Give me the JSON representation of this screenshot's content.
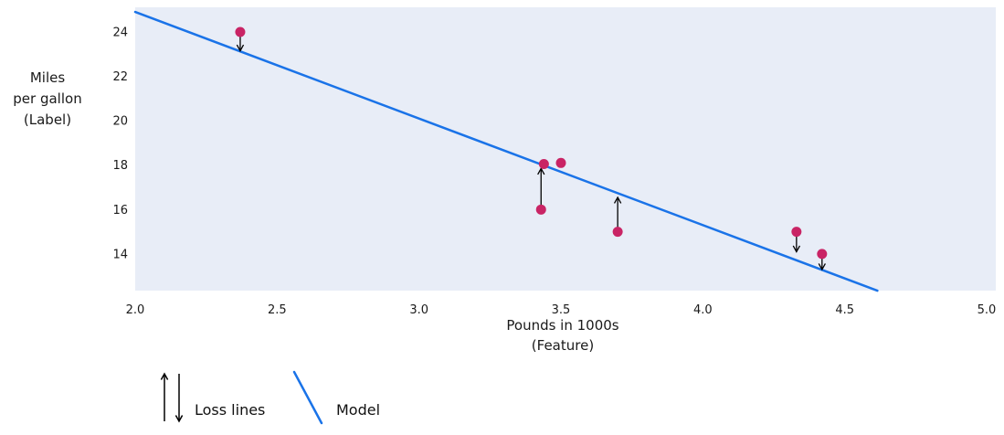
{
  "chart_data": {
    "type": "scatter",
    "xlabel": "Pounds in 1000s (Feature)",
    "xlabel_lines": [
      "Pounds in 1000s",
      "(Feature)"
    ],
    "ylabel": "Miles per gallon (Label)",
    "ylabel_lines": [
      "Miles",
      "per gallon",
      "(Label)"
    ],
    "xlim": [
      2.0,
      5.0
    ],
    "ylim": [
      12.35,
      25.11
    ],
    "xticks": [
      2.0,
      2.5,
      3.0,
      3.5,
      4.0,
      4.5,
      5.0
    ],
    "xtick_labels": [
      "2.0",
      "2.5",
      "3.0",
      "3.5",
      "4.0",
      "4.5",
      "5.0"
    ],
    "yticks": [
      14,
      16,
      18,
      20,
      22,
      24
    ],
    "ytick_labels": [
      "14",
      "16",
      "18",
      "20",
      "22",
      "24"
    ],
    "grid": false,
    "points": [
      {
        "x": 2.37,
        "y": 24.0
      },
      {
        "x": 3.43,
        "y": 16.0
      },
      {
        "x": 3.44,
        "y": 18.05
      },
      {
        "x": 3.5,
        "y": 18.1
      },
      {
        "x": 3.7,
        "y": 15.0
      },
      {
        "x": 4.33,
        "y": 15.0
      },
      {
        "x": 4.42,
        "y": 14.0
      }
    ],
    "model_line": {
      "slope": -4.8,
      "intercept": 34.5,
      "x_start": 2.0,
      "x_end": 4.615
    },
    "loss_arrows": [
      {
        "x": 2.37,
        "y_from": 23.8,
        "y_to": 23.15,
        "direction": "down"
      },
      {
        "x": 3.43,
        "y_from": 16.2,
        "y_to": 17.85,
        "direction": "up"
      },
      {
        "x": 3.7,
        "y_from": 15.2,
        "y_to": 16.55,
        "direction": "up"
      },
      {
        "x": 4.33,
        "y_from": 14.8,
        "y_to": 14.1,
        "direction": "down"
      },
      {
        "x": 4.42,
        "y_from": 13.8,
        "y_to": 13.3,
        "direction": "down"
      }
    ],
    "legend": {
      "position": "bottom-left",
      "items": [
        {
          "symbol": "arrow-pair",
          "label": "Loss lines"
        },
        {
          "symbol": "line",
          "label": "Model"
        }
      ]
    },
    "colors": {
      "point": "#c92465",
      "model_line": "#1a73e8",
      "arrow": "#000000",
      "plot_bg": "#e8edf7",
      "text": "#1a1a1a"
    }
  }
}
